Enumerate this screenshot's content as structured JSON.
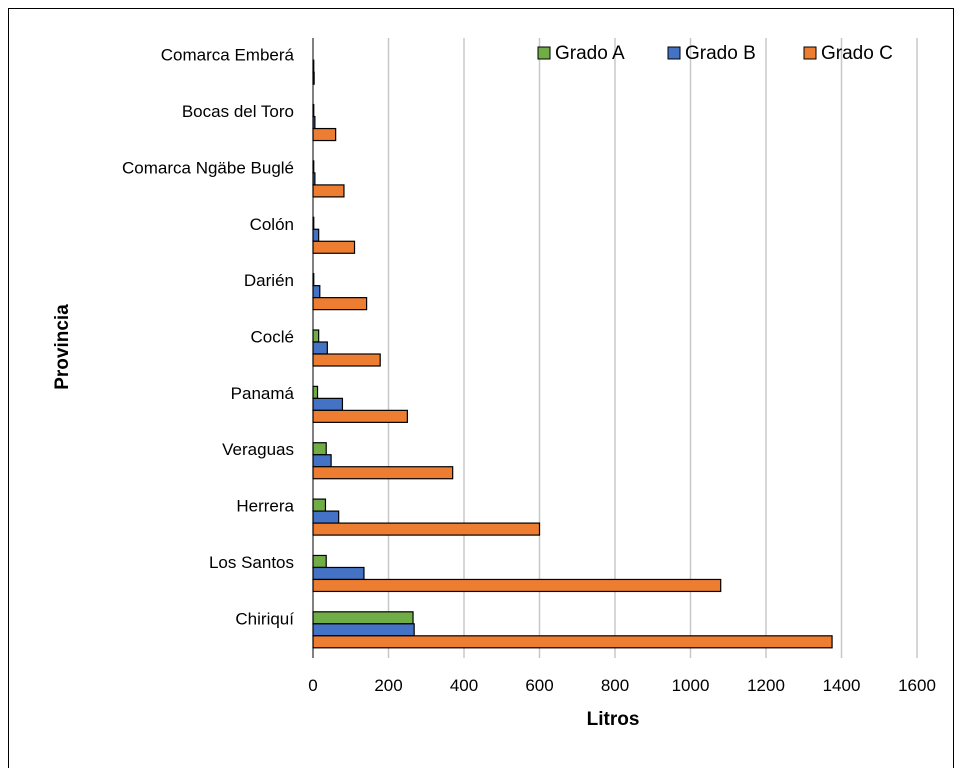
{
  "chart_data": {
    "type": "bar",
    "orientation": "horizontal",
    "xlabel": "Litros",
    "ylabel": "Provincia",
    "xlim": [
      0,
      1600
    ],
    "xticks": [
      "0",
      "200",
      "400",
      "600",
      "800",
      "1000",
      "1200",
      "1400",
      "1600"
    ],
    "grid": true,
    "legend_position": "top-right",
    "categories": [
      "Chiriquí",
      "Los Santos",
      "Herrera",
      "Veraguas",
      "Panamá",
      "Coclé",
      "Darién",
      "Colón",
      "Comarca Ngäbe Buglé",
      "Bocas del Toro",
      "Comarca Emberá"
    ],
    "series": [
      {
        "name": "Grado A",
        "color": "#70AD47",
        "values": [
          265,
          35,
          33,
          35,
          12,
          15,
          2,
          2,
          2,
          2,
          0
        ]
      },
      {
        "name": "Grado B",
        "color": "#4472C4",
        "values": [
          268,
          135,
          68,
          48,
          78,
          38,
          18,
          15,
          5,
          5,
          2
        ]
      },
      {
        "name": "Grado C",
        "color": "#ED7D31",
        "values": [
          1375,
          1080,
          600,
          370,
          250,
          178,
          142,
          110,
          82,
          60,
          3
        ]
      }
    ]
  }
}
